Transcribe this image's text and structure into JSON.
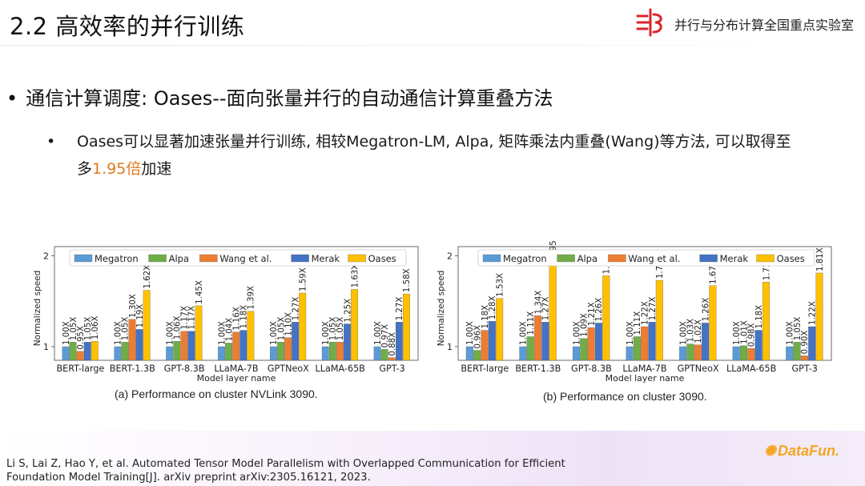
{
  "slide": {
    "title": "2.2 高效率的并行训练",
    "lab_name": "并行与分布计算全国重点实验室",
    "main_bullet": "通信计算调度: Oases--面向张量并行的自动通信计算重叠方法",
    "sub_bullet_text": "Oases可以显著加速张量并行训练, 相较Megatron-LM, Alpa, 矩阵乘法内重叠(Wang)等方法, 可以取得至多",
    "sub_bullet_highlight": "1.95倍",
    "sub_bullet_tail": "加速",
    "reference_line1": "Li S, Lai Z, Hao Y, et al. Automated Tensor Model Parallelism with Overlapped Communication for Efficient",
    "reference_line2": "Foundation Model Training[J]. arXiv preprint arXiv:2305.16121, 2023.",
    "brand": "DataFun."
  },
  "colors": {
    "Megatron": "#5b9bd5",
    "Alpa": "#70ad47",
    "Wang et al.": "#ed7d31",
    "Merak": "#4472c4",
    "Oases": "#ffc000",
    "highlight": "#e07a1f",
    "logo_red": "#d9262b"
  },
  "icons": {
    "lab_logo": "lab-logo-icon",
    "brand_spark": "spark-icon"
  },
  "chart_data": [
    {
      "type": "bar",
      "caption": "(a) Performance on cluster NVLink 3090.",
      "xlabel": "Model layer name",
      "ylabel": "Normalized speed",
      "yticks": [
        1,
        2
      ],
      "ylim": [
        0.85,
        2.1
      ],
      "legend_position": "top",
      "grid": false,
      "categories": [
        "BERT-large",
        "BERT-1.3B",
        "GPT-8.3B",
        "LLaMA-7B",
        "GPTNeoX",
        "LLaMA-65B",
        "GPT-3"
      ],
      "series": [
        {
          "name": "Megatron",
          "values": [
            1.0,
            1.0,
            1.0,
            1.0,
            1.0,
            1.0,
            1.0
          ],
          "labels": [
            "1.00X",
            "1.00X",
            "1.00X",
            "1.00X",
            "1.00X",
            "1.00X",
            "1.00X"
          ]
        },
        {
          "name": "Alpa",
          "values": [
            1.05,
            1.05,
            1.06,
            1.04,
            1.05,
            1.05,
            0.97
          ],
          "labels": [
            "1.05X",
            "1.05X",
            "1.06X",
            "1.04X",
            "1.05X",
            "1.05X",
            "0.97X"
          ]
        },
        {
          "name": "Wang et al.",
          "values": [
            0.95,
            1.3,
            1.17,
            1.16,
            1.1,
            1.05,
            0.88
          ],
          "labels": [
            "0.95X",
            "1.30X",
            "1.17X",
            "1.16X",
            "1.10X",
            "1.05X",
            "0.88X"
          ]
        },
        {
          "name": "Merak",
          "values": [
            1.05,
            1.19,
            1.17,
            1.18,
            1.27,
            1.25,
            1.27
          ],
          "labels": [
            "1.05X",
            "1.19X",
            "1.17X",
            "1.18X",
            "1.27X",
            "1.25X",
            "1.27X"
          ]
        },
        {
          "name": "Oases",
          "values": [
            1.06,
            1.62,
            1.45,
            1.39,
            1.59,
            1.63,
            1.58
          ],
          "labels": [
            "1.06X",
            "1.62X",
            "1.45X",
            "1.39X",
            "1.59X",
            "1.63X",
            "1.58X"
          ]
        }
      ]
    },
    {
      "type": "bar",
      "caption": "(b) Performance on cluster 3090.",
      "xlabel": "Model layer name",
      "ylabel": "Normalized speed",
      "yticks": [
        1,
        2
      ],
      "ylim": [
        0.85,
        2.1
      ],
      "legend_position": "top",
      "grid": false,
      "categories": [
        "BERT-large",
        "BERT-1.3B",
        "GPT-8.3B",
        "LLaMA-7B",
        "GPTNeoX",
        "LLaMA-65B",
        "GPT-3"
      ],
      "series": [
        {
          "name": "Megatron",
          "values": [
            1.0,
            1.0,
            1.0,
            1.0,
            1.0,
            1.0,
            1.0
          ],
          "labels": [
            "1.00X",
            "1.00X",
            "1.00X",
            "1.00X",
            "1.00X",
            "1.00X",
            "1.00X"
          ]
        },
        {
          "name": "Alpa",
          "values": [
            0.96,
            1.11,
            1.09,
            1.11,
            1.03,
            1.01,
            1.05
          ],
          "labels": [
            "0.96X",
            "1.11X",
            "1.09X",
            "1.11X",
            "1.03X",
            "1.01X",
            "1.05X"
          ]
        },
        {
          "name": "Wang et al.",
          "values": [
            1.18,
            1.34,
            1.21,
            1.22,
            1.02,
            0.98,
            0.9
          ],
          "labels": [
            "1.18X",
            "1.34X",
            "1.21X",
            "1.22X",
            "1.02X",
            "0.98X",
            "0.90X"
          ]
        },
        {
          "name": "Merak",
          "values": [
            1.28,
            1.27,
            1.26,
            1.27,
            1.26,
            1.18,
            1.22
          ],
          "labels": [
            "1.28X",
            "1.27X",
            "1.26X",
            "1.27X",
            "1.26X",
            "1.18X",
            "1.22X"
          ]
        },
        {
          "name": "Oases",
          "values": [
            1.53,
            1.95,
            1.78,
            1.73,
            1.67,
            1.71,
            1.81
          ],
          "labels": [
            "1.53X",
            "1.95X",
            "1.78X",
            "1.73X",
            "1.67X",
            "1.71X",
            "1.81X"
          ]
        }
      ]
    }
  ]
}
